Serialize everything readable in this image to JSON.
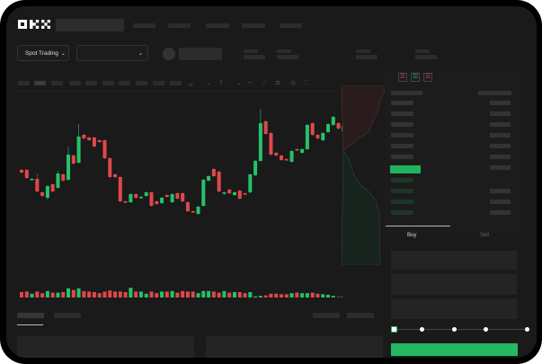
{
  "header": {
    "logo": "OKX",
    "logo_color": "#ffffff"
  },
  "market_bar": {
    "product_selector": "Spot Trading",
    "pair_selector": ""
  },
  "toolbar": {
    "icons": [
      "indicator-icon",
      "chevron-down-icon",
      "fx-icon",
      "chevron-down-icon",
      "line-tool-icon",
      "ruler-icon",
      "camera-icon",
      "settings-icon",
      "fullscreen-icon"
    ]
  },
  "orderbook": {
    "view_icons": [
      "orderbook-both-icon",
      "orderbook-bids-icon",
      "orderbook-asks-icon"
    ],
    "highlight_color": "#22b35e"
  },
  "trade_panel": {
    "tabs": [
      {
        "label": "Buy",
        "active": true
      },
      {
        "label": "Sell",
        "active": false
      }
    ],
    "slider_percent": 0,
    "button_color": "#25b864"
  },
  "colors": {
    "up": "#25c26a",
    "down": "#e0474c",
    "background": "#1a1a1a"
  },
  "chart_data": {
    "type": "candlestick",
    "candles": [
      [
        68,
        68,
        65,
        65
      ],
      [
        68,
        68,
        59,
        59
      ],
      [
        58,
        58,
        58,
        58
      ],
      [
        58,
        63,
        44,
        44
      ],
      [
        43,
        43,
        39,
        39
      ],
      [
        37,
        50,
        36,
        50
      ],
      [
        52,
        52,
        44,
        44
      ],
      [
        48,
        66,
        48,
        64
      ],
      [
        63,
        63,
        56,
        56
      ],
      [
        57,
        93,
        57,
        85
      ],
      [
        84,
        84,
        75,
        75
      ],
      [
        76,
        118,
        76,
        105
      ],
      [
        107,
        107,
        103,
        103
      ],
      [
        104,
        104,
        101,
        101
      ],
      [
        104,
        104,
        94,
        94
      ],
      [
        101,
        101,
        99,
        99
      ],
      [
        101,
        101,
        81,
        81
      ],
      [
        81,
        81,
        60,
        60
      ],
      [
        63,
        63,
        60,
        60
      ],
      [
        60,
        60,
        33,
        33
      ],
      [
        33,
        33,
        32,
        32
      ],
      [
        32,
        41,
        32,
        41
      ],
      [
        41,
        41,
        37,
        37
      ],
      [
        37,
        38,
        37,
        38
      ],
      [
        39,
        43,
        39,
        43
      ],
      [
        43,
        43,
        28,
        28
      ],
      [
        33,
        33,
        30,
        30
      ],
      [
        31,
        37,
        31,
        37
      ],
      [
        40,
        40,
        38,
        38
      ],
      [
        32,
        41,
        32,
        41
      ],
      [
        42,
        42,
        36,
        36
      ],
      [
        42,
        42,
        33,
        33
      ],
      [
        32,
        32,
        22,
        22
      ],
      [
        22,
        22,
        21,
        21
      ],
      [
        19,
        27,
        19,
        27
      ],
      [
        28,
        57,
        28,
        57
      ],
      [
        56,
        61,
        56,
        61
      ],
      [
        69,
        69,
        61,
        61
      ],
      [
        66,
        66,
        44,
        44
      ],
      [
        42,
        43,
        41,
        43
      ],
      [
        46,
        46,
        42,
        42
      ],
      [
        40,
        43,
        40,
        43
      ],
      [
        45,
        45,
        36,
        36
      ],
      [
        42,
        42,
        41,
        41
      ],
      [
        43,
        63,
        43,
        63
      ],
      [
        62,
        78,
        62,
        78
      ],
      [
        78,
        135,
        78,
        120
      ],
      [
        122,
        122,
        108,
        108
      ],
      [
        109,
        109,
        85,
        85
      ],
      [
        87,
        87,
        84,
        84
      ],
      [
        84,
        84,
        79,
        79
      ],
      [
        80,
        80,
        79,
        79
      ],
      [
        77,
        89,
        77,
        89
      ],
      [
        91,
        91,
        90,
        90
      ],
      [
        87,
        91,
        87,
        91
      ],
      [
        91,
        118,
        91,
        118
      ],
      [
        120,
        120,
        107,
        107
      ],
      [
        107,
        107,
        103,
        103
      ],
      [
        101,
        109,
        101,
        109
      ],
      [
        110,
        119,
        110,
        119
      ],
      [
        118,
        127,
        118,
        127
      ],
      [
        120,
        120,
        114,
        114
      ],
      [
        111,
        117,
        111,
        117
      ]
    ],
    "volume": [
      10,
      11,
      7,
      11,
      8,
      12,
      9,
      9,
      10,
      17,
      14,
      17,
      12,
      11,
      10,
      8,
      11,
      13,
      11,
      11,
      10,
      18,
      11,
      11,
      7,
      11,
      8,
      11,
      11,
      12,
      9,
      12,
      11,
      11,
      8,
      12,
      12,
      11,
      9,
      12,
      9,
      10,
      10,
      8,
      10,
      2,
      3,
      4,
      7,
      7,
      6,
      6,
      8,
      9,
      8,
      8,
      9,
      7,
      6,
      5,
      3,
      1,
      3
    ]
  }
}
